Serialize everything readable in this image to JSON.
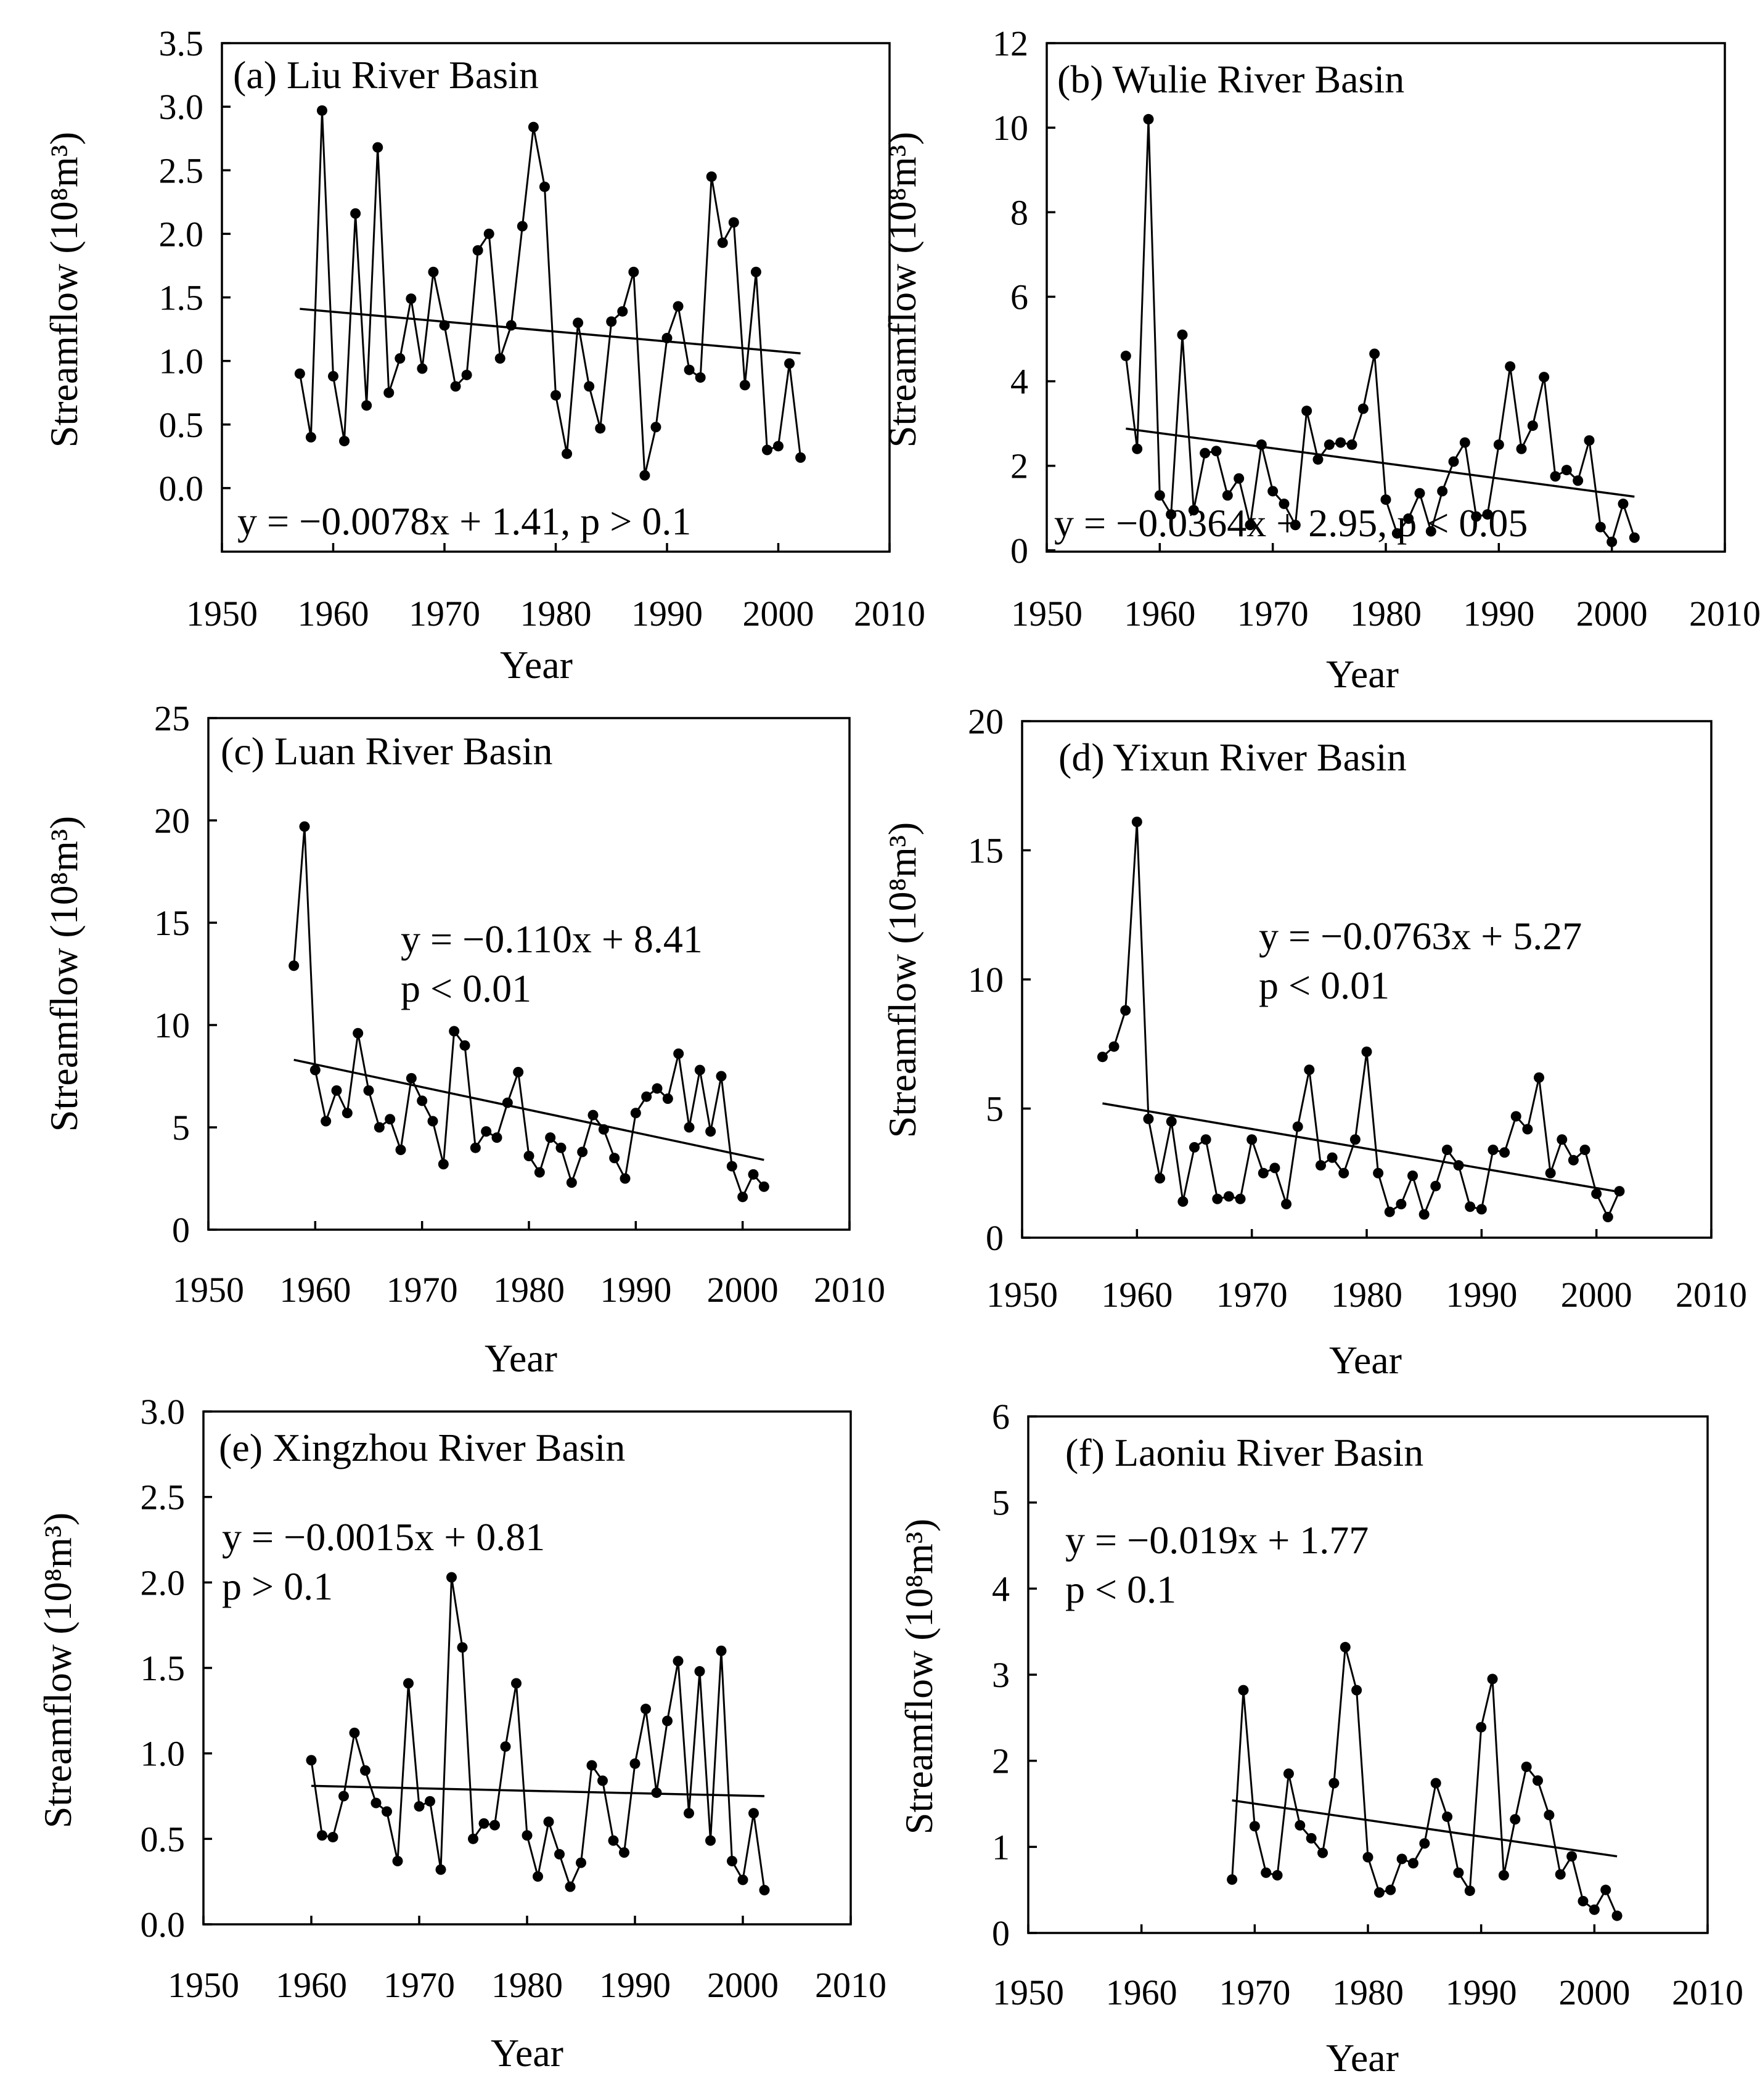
{
  "chart_data": [
    {
      "type": "line",
      "panel_title": "(a) Liu River Basin",
      "xlabel": "Year",
      "ylabel": "Streamflow (10⁸m³)",
      "xlim": [
        1950,
        2010
      ],
      "xticks": [
        1950,
        1960,
        1970,
        1980,
        1990,
        2000,
        2010
      ],
      "ylim": [
        -0.5,
        3.5
      ],
      "yticks": [
        "0.0",
        "0.5",
        "1.0",
        "1.5",
        "2.0",
        "2.5",
        "3.0",
        "3.5"
      ],
      "equation": [
        "y = −0.0078x + 1.41, p > 0.1"
      ],
      "trend": {
        "x": [
          1957,
          2002
        ],
        "y": [
          1.41,
          1.06
        ]
      },
      "x": [
        1957,
        1958,
        1959,
        1960,
        1961,
        1962,
        1963,
        1964,
        1965,
        1966,
        1967,
        1968,
        1969,
        1970,
        1971,
        1972,
        1973,
        1974,
        1975,
        1976,
        1977,
        1978,
        1979,
        1980,
        1981,
        1982,
        1983,
        1984,
        1985,
        1986,
        1987,
        1988,
        1989,
        1990,
        1991,
        1992,
        1993,
        1994,
        1995,
        1996,
        1997,
        1998,
        1999,
        2000,
        2001,
        2002
      ],
      "y": [
        0.9,
        0.4,
        2.97,
        0.88,
        0.37,
        2.16,
        0.65,
        2.68,
        0.75,
        1.02,
        1.49,
        0.94,
        1.7,
        1.28,
        0.8,
        0.89,
        1.87,
        2.0,
        1.02,
        1.28,
        2.06,
        2.84,
        2.37,
        0.73,
        0.27,
        1.3,
        0.8,
        0.47,
        1.31,
        1.39,
        1.7,
        0.1,
        0.48,
        1.18,
        1.43,
        0.93,
        0.87,
        2.45,
        1.93,
        2.09,
        0.81,
        1.7,
        0.3,
        0.33,
        0.98,
        0.24
      ]
    },
    {
      "type": "line",
      "panel_title": "(b) Wulie River Basin",
      "xlabel": "Year",
      "ylabel": "Streamflow (10⁸m³)",
      "xlim": [
        1950,
        2010
      ],
      "xticks": [
        1950,
        1960,
        1970,
        1980,
        1990,
        2000,
        2010
      ],
      "ylim": [
        -2,
        12
      ],
      "yticks": [
        "0",
        "2",
        "4",
        "6",
        "8",
        "10",
        "12"
      ],
      "equation": [
        "y = −0.0364x + 2.95, p < 0.05"
      ],
      "trend": {
        "x": [
          1957,
          2002
        ],
        "y": [
          2.88,
          1.27
        ]
      },
      "x": [
        1957,
        1958,
        1959,
        1960,
        1961,
        1962,
        1963,
        1964,
        1965,
        1966,
        1967,
        1968,
        1969,
        1970,
        1971,
        1972,
        1973,
        1974,
        1975,
        1976,
        1977,
        1978,
        1979,
        1980,
        1981,
        1982,
        1983,
        1984,
        1985,
        1986,
        1987,
        1988,
        1989,
        1990,
        1991,
        1992,
        1993,
        1994,
        1995,
        1996,
        1997,
        1998,
        1999,
        2000,
        2001,
        2002
      ],
      "y": [
        4.6,
        2.4,
        10.2,
        1.3,
        0.85,
        5.1,
        0.95,
        2.3,
        2.35,
        1.3,
        1.7,
        0.6,
        2.5,
        1.4,
        1.1,
        0.6,
        3.3,
        2.15,
        2.5,
        2.55,
        2.5,
        3.35,
        4.65,
        1.2,
        0.4,
        0.75,
        1.35,
        0.45,
        1.4,
        2.1,
        2.55,
        0.8,
        0.85,
        2.5,
        4.35,
        2.4,
        2.95,
        4.1,
        1.75,
        1.9,
        1.65,
        2.6,
        0.55,
        0.2,
        1.1,
        0.3
      ]
    },
    {
      "type": "line",
      "panel_title": "(c) Luan River Basin",
      "xlabel": "Year",
      "ylabel": "Streamflow (10⁸m³)",
      "xlim": [
        1950,
        2010
      ],
      "xticks": [
        1950,
        1960,
        1970,
        1980,
        1990,
        2000,
        2010
      ],
      "ylim": [
        0,
        25
      ],
      "yticks": [
        "0",
        "5",
        "10",
        "15",
        "20",
        "25"
      ],
      "equation": [
        "y = −0.110x + 8.41",
        "p < 0.01"
      ],
      "trend": {
        "x": [
          1958,
          2002
        ],
        "y": [
          8.3,
          3.41
        ]
      },
      "x": [
        1958,
        1959,
        1960,
        1961,
        1962,
        1963,
        1964,
        1965,
        1966,
        1967,
        1968,
        1969,
        1970,
        1971,
        1972,
        1973,
        1974,
        1975,
        1976,
        1977,
        1978,
        1979,
        1980,
        1981,
        1982,
        1983,
        1984,
        1985,
        1986,
        1987,
        1988,
        1989,
        1990,
        1991,
        1992,
        1993,
        1994,
        1995,
        1996,
        1997,
        1998,
        1999,
        2000,
        2001,
        2002
      ],
      "y": [
        12.9,
        19.7,
        7.8,
        5.3,
        6.8,
        5.7,
        9.6,
        6.8,
        5.0,
        5.4,
        3.9,
        7.4,
        6.3,
        5.3,
        3.2,
        9.7,
        9.0,
        4.0,
        4.8,
        4.5,
        6.2,
        7.7,
        3.6,
        2.8,
        4.5,
        4.0,
        2.3,
        3.8,
        5.6,
        4.9,
        3.5,
        2.5,
        5.7,
        6.5,
        6.9,
        6.4,
        8.6,
        5.0,
        7.8,
        4.8,
        7.5,
        3.1,
        1.6,
        2.7,
        2.1
      ]
    },
    {
      "type": "line",
      "panel_title": "(d) Yixun River Basin",
      "xlabel": "Year",
      "ylabel": "Streamflow (10⁸m³)",
      "xlim": [
        1950,
        2010
      ],
      "xticks": [
        1950,
        1960,
        1970,
        1980,
        1990,
        2000,
        2010
      ],
      "ylim": [
        0,
        20
      ],
      "yticks": [
        "0",
        "5",
        "10",
        "15",
        "20"
      ],
      "equation": [
        "y = −0.0763x + 5.27",
        "p < 0.01"
      ],
      "trend": {
        "x": [
          1957,
          2002
        ],
        "y": [
          5.2,
          1.77
        ]
      },
      "x": [
        1957,
        1958,
        1959,
        1960,
        1961,
        1962,
        1963,
        1964,
        1965,
        1966,
        1967,
        1968,
        1969,
        1970,
        1971,
        1972,
        1973,
        1974,
        1975,
        1976,
        1977,
        1978,
        1979,
        1980,
        1981,
        1982,
        1983,
        1984,
        1985,
        1986,
        1987,
        1988,
        1989,
        1990,
        1991,
        1992,
        1993,
        1994,
        1995,
        1996,
        1997,
        1998,
        1999,
        2000,
        2001,
        2002
      ],
      "y": [
        7.0,
        7.4,
        8.8,
        16.1,
        4.6,
        2.3,
        4.5,
        1.4,
        3.5,
        3.8,
        1.5,
        1.6,
        1.5,
        3.8,
        2.5,
        2.7,
        1.3,
        4.3,
        6.5,
        2.8,
        3.1,
        2.5,
        3.8,
        7.2,
        2.5,
        1.0,
        1.3,
        2.4,
        0.9,
        2.0,
        3.4,
        2.8,
        1.2,
        1.1,
        3.4,
        3.3,
        4.7,
        4.2,
        6.2,
        2.5,
        3.8,
        3.0,
        3.4,
        1.7,
        0.8,
        1.8
      ]
    },
    {
      "type": "line",
      "panel_title": "(e) Xingzhou River Basin",
      "xlabel": "Year",
      "ylabel": "Streamflow (10⁸m³)",
      "xlim": [
        1950,
        2010
      ],
      "xticks": [
        1950,
        1960,
        1970,
        1980,
        1990,
        2000,
        2010
      ],
      "ylim": [
        0,
        3
      ],
      "yticks": [
        "0.0",
        "0.5",
        "1.0",
        "1.5",
        "2.0",
        "2.5",
        "3.0"
      ],
      "equation": [
        "y = −0.0015x + 0.81",
        "p > 0.1"
      ],
      "trend": {
        "x": [
          1960,
          2002
        ],
        "y": [
          0.81,
          0.75
        ]
      },
      "x": [
        1960,
        1961,
        1962,
        1963,
        1964,
        1965,
        1966,
        1967,
        1968,
        1969,
        1970,
        1971,
        1972,
        1973,
        1974,
        1975,
        1976,
        1977,
        1978,
        1979,
        1980,
        1981,
        1982,
        1983,
        1984,
        1985,
        1986,
        1987,
        1988,
        1989,
        1990,
        1991,
        1992,
        1993,
        1994,
        1995,
        1996,
        1997,
        1998,
        1999,
        2000,
        2001,
        2002
      ],
      "y": [
        0.96,
        0.52,
        0.51,
        0.75,
        1.12,
        0.9,
        0.71,
        0.66,
        0.37,
        1.41,
        0.69,
        0.72,
        0.32,
        2.03,
        1.62,
        0.5,
        0.59,
        0.58,
        1.04,
        1.41,
        0.52,
        0.28,
        0.6,
        0.41,
        0.22,
        0.36,
        0.93,
        0.84,
        0.49,
        0.42,
        0.94,
        1.26,
        0.77,
        1.19,
        1.54,
        0.65,
        1.48,
        0.49,
        1.6,
        0.37,
        0.26,
        0.65,
        0.2
      ]
    },
    {
      "type": "line",
      "panel_title": "(f) Laoniu River Basin",
      "xlabel": "Year",
      "ylabel": "Streamflow (10⁸m³)",
      "xlim": [
        1950,
        2010
      ],
      "xticks": [
        1950,
        1960,
        1970,
        1980,
        1990,
        2000,
        2010
      ],
      "ylim": [
        0,
        6
      ],
      "yticks": [
        "0",
        "1",
        "2",
        "3",
        "4",
        "5",
        "6"
      ],
      "equation": [
        "y = −0.019x + 1.77",
        "p < 0.1"
      ],
      "trend": {
        "x": [
          1968,
          2002
        ],
        "y": [
          1.54,
          0.89
        ]
      },
      "x": [
        1968,
        1969,
        1970,
        1971,
        1972,
        1973,
        1974,
        1975,
        1976,
        1977,
        1978,
        1979,
        1980,
        1981,
        1982,
        1983,
        1984,
        1985,
        1986,
        1987,
        1988,
        1989,
        1990,
        1991,
        1992,
        1993,
        1994,
        1995,
        1996,
        1997,
        1998,
        1999,
        2000,
        2001,
        2002
      ],
      "y": [
        0.62,
        2.82,
        1.24,
        0.7,
        0.67,
        1.85,
        1.25,
        1.1,
        0.93,
        1.74,
        3.32,
        2.82,
        0.88,
        0.47,
        0.5,
        0.86,
        0.81,
        1.04,
        1.74,
        1.35,
        0.7,
        0.49,
        2.39,
        2.95,
        0.67,
        1.32,
        1.93,
        1.77,
        1.37,
        0.68,
        0.89,
        0.37,
        0.27,
        0.5,
        0.2
      ]
    }
  ]
}
